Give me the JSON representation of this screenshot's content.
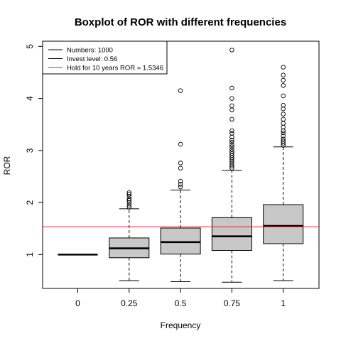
{
  "chart_data": {
    "type": "boxplot",
    "title": "Boxplot of ROR with different frequencies",
    "xlabel": "Frequency",
    "ylabel": "ROR",
    "categories": [
      "0",
      "0.25",
      "0.5",
      "0.75",
      "1"
    ],
    "yticks": [
      "1",
      "2",
      "3",
      "4",
      "5"
    ],
    "ylim": [
      0.35,
      5.1
    ],
    "box_fill": "#c8c8c8",
    "reference_line": {
      "value": 1.5346,
      "color": "#e8202a"
    },
    "boxes": [
      {
        "category": "0",
        "whisker_low": 1.0,
        "q1": 1.0,
        "median": 1.0,
        "q3": 1.0,
        "whisker_high": 1.0,
        "outliers": []
      },
      {
        "category": "0.25",
        "whisker_low": 0.5,
        "q1": 0.94,
        "median": 1.12,
        "q3": 1.32,
        "whisker_high": 1.88,
        "outliers": [
          1.91,
          1.95,
          2.0,
          2.04,
          2.07,
          2.12,
          2.16,
          2.19
        ]
      },
      {
        "category": "0.5",
        "whisker_low": 0.48,
        "q1": 1.01,
        "median": 1.24,
        "q3": 1.51,
        "whisker_high": 2.24,
        "outliers": [
          2.3,
          2.35,
          2.41,
          2.66,
          2.76,
          3.12,
          4.15
        ]
      },
      {
        "category": "0.75",
        "whisker_low": 0.47,
        "q1": 1.08,
        "median": 1.35,
        "q3": 1.71,
        "whisker_high": 2.62,
        "outliers": [
          2.66,
          2.7,
          2.74,
          2.78,
          2.82,
          2.86,
          2.9,
          2.94,
          2.98,
          3.02,
          3.07,
          3.11,
          3.16,
          3.2,
          3.26,
          3.33,
          3.38,
          3.6,
          3.78,
          3.86,
          4.0,
          4.2,
          4.93
        ]
      },
      {
        "category": "1",
        "whisker_low": 0.5,
        "q1": 1.21,
        "median": 1.55,
        "q3": 1.96,
        "whisker_high": 3.07,
        "outliers": [
          3.1,
          3.14,
          3.18,
          3.22,
          3.28,
          3.34,
          3.38,
          3.45,
          3.52,
          3.6,
          3.7,
          3.8,
          3.87,
          4.05,
          4.25,
          4.35,
          4.45,
          4.6
        ]
      }
    ],
    "legend": {
      "placement": "top-left",
      "entries": [
        {
          "label": "Numbers: 1000",
          "color": "#000000"
        },
        {
          "label": "Invest level: 0.56",
          "color": "#000000"
        },
        {
          "label": "Hold for 10 years ROR = 1.5346",
          "color": "#e8202a"
        }
      ]
    }
  }
}
